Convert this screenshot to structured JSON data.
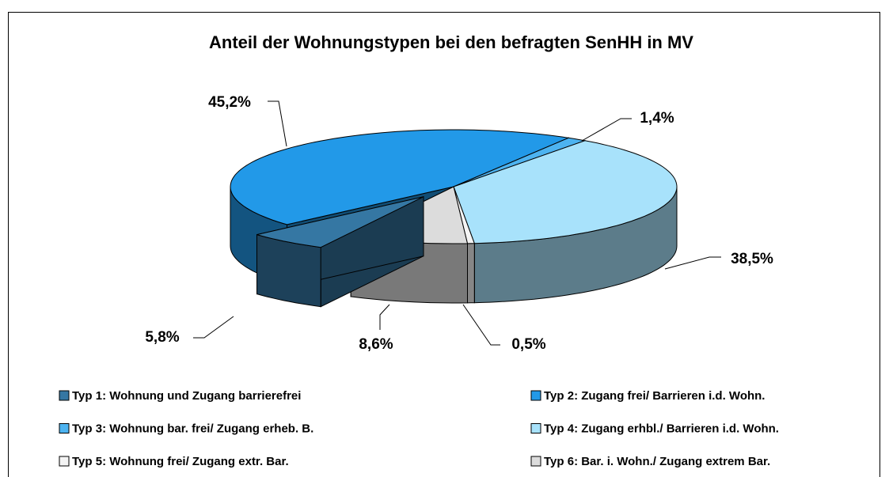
{
  "chart_data": {
    "type": "pie3d",
    "title": "Anteil der Wohnungstypen bei den befragten SenHH in MV",
    "categories": [
      "Typ 1: Wohnung und Zugang barrierefrei",
      "Typ 2: Zugang frei/ Barrieren i.d. Wohn.",
      "Typ 3: Wohnung bar. frei/ Zugang erheb. B.",
      "Typ 4: Zugang erhbl./ Barrieren i.d. Wohn.",
      "Typ 5: Wohnung frei/ Zugang extr. Bar.",
      "Typ 6: Bar. i. Wohn./ Zugang extrem Bar."
    ],
    "values": [
      5.8,
      45.2,
      1.4,
      38.5,
      0.5,
      8.6
    ],
    "value_labels": [
      "5,8%",
      "45,2%",
      "1,4%",
      "38,5%",
      "0,5%",
      "8,6%"
    ],
    "colors": [
      "#3577a3",
      "#2299e8",
      "#4db3f0",
      "#a8e2fb",
      "#f4f4f4",
      "#dcdcdc"
    ],
    "exploded": [
      0
    ],
    "legend": "bottom"
  }
}
